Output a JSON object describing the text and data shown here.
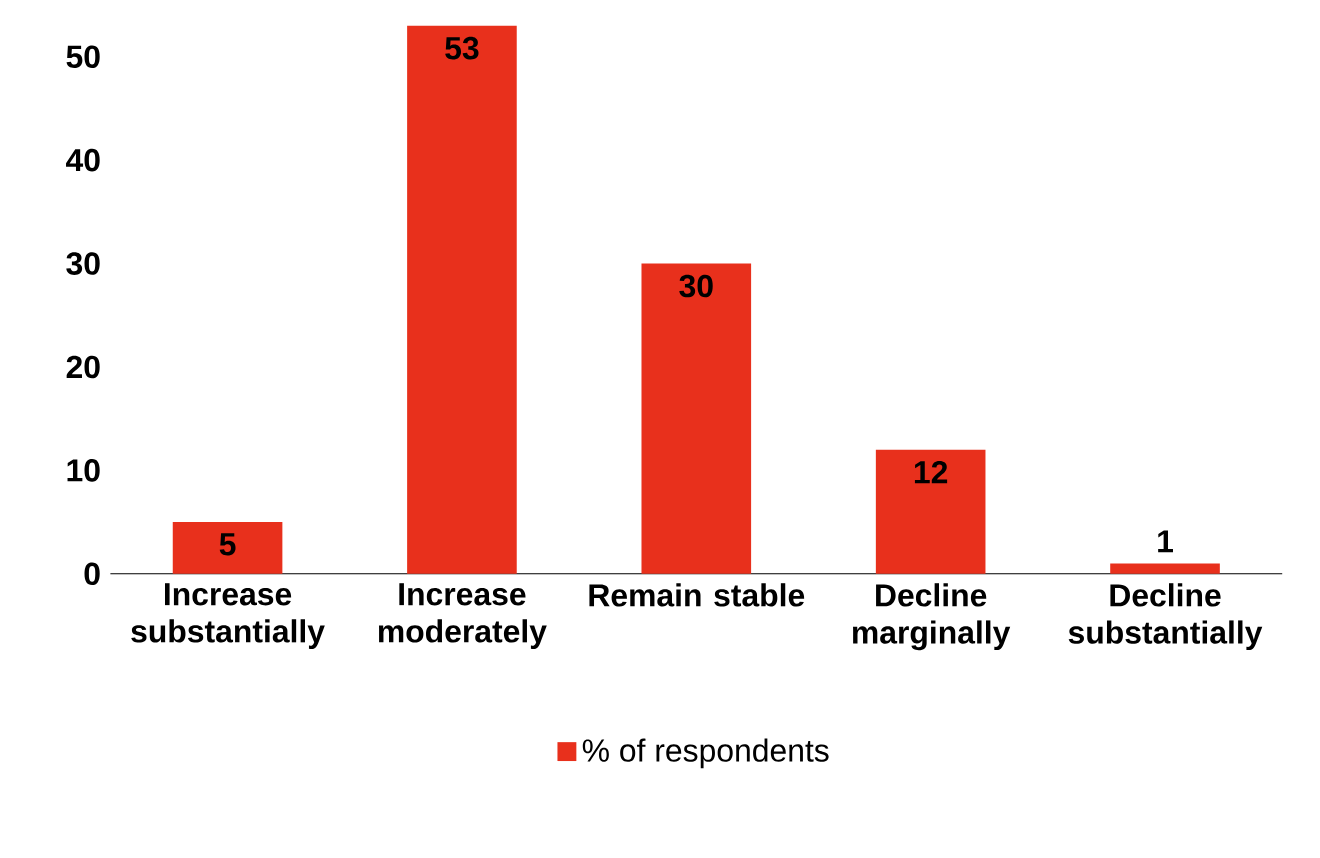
{
  "chart_data": {
    "type": "bar",
    "categories": [
      "Increase substantially",
      "Increase moderately",
      "Remain stable",
      "Decline marginally",
      "Decline substantially"
    ],
    "series": [
      {
        "name": "% of respondents",
        "color": "#e8301c",
        "values": [
          5,
          53,
          30,
          12,
          1
        ]
      }
    ],
    "ylim": [
      0,
      53
    ],
    "yticks": [
      0,
      10,
      20,
      30,
      40,
      50
    ],
    "data_labels": true,
    "legend": "bottom"
  }
}
